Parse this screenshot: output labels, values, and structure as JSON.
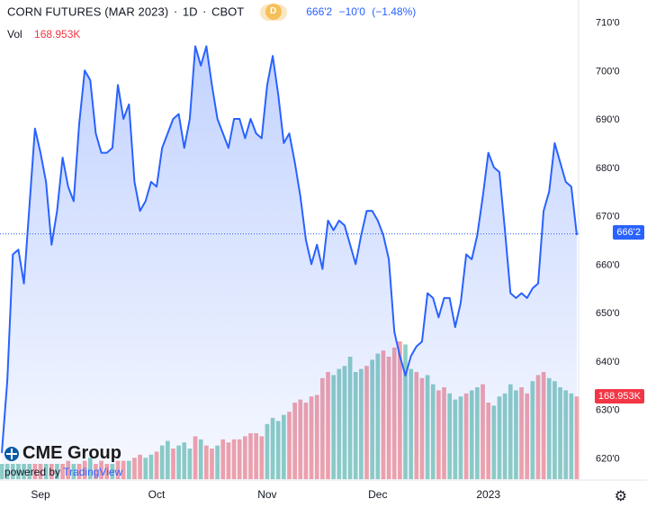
{
  "header": {
    "title": "CORN FUTURES (MAR 2023)",
    "interval": "1D",
    "exchange": "CBOT",
    "separator": "·",
    "badge_letter": "D",
    "last": "666'2",
    "change": "−10'0",
    "change_pct": "(−1.48%)"
  },
  "volume": {
    "label": "Vol",
    "value": "168.953K"
  },
  "price_tag": "666'2",
  "volume_tag": "168.953K",
  "logo": {
    "brand": "CME Group",
    "powered_by": "powered by",
    "tv": "TradingView"
  },
  "settings_icon": "gear-icon",
  "colors": {
    "line": "#2962ff",
    "vol_up": "#8fcfc4",
    "vol_down": "#f5a3a8",
    "price_tag": "#2962ff",
    "volume_tag": "#f23645"
  },
  "chart_data": {
    "type": "area",
    "ylim": [
      616,
      712
    ],
    "y_ticks": [
      "710'0",
      "700'0",
      "690'0",
      "680'0",
      "670'0",
      "660'0",
      "650'0",
      "640'0",
      "630'0",
      "620'0"
    ],
    "y_tick_values": [
      710,
      700,
      690,
      680,
      670,
      660,
      650,
      640,
      630,
      620
    ],
    "x_labels": [
      {
        "label": "Sep",
        "index": 7
      },
      {
        "label": "Oct",
        "index": 28
      },
      {
        "label": "Nov",
        "index": 48
      },
      {
        "label": "Dec",
        "index": 68
      },
      {
        "label": "2023",
        "index": 88
      }
    ],
    "last_price": 666.25,
    "close": [
      621,
      636,
      662,
      663,
      656,
      672,
      688,
      683,
      677,
      664,
      671,
      682,
      676,
      673,
      689,
      700,
      698,
      687,
      683,
      683,
      684,
      697,
      690,
      693,
      677,
      671,
      673,
      677,
      676,
      684,
      687,
      690,
      691,
      684,
      690,
      705,
      701,
      705,
      697,
      690,
      687,
      684,
      690,
      690,
      686,
      690,
      687,
      686,
      697,
      703,
      695,
      685,
      687,
      681,
      674,
      665,
      660,
      664,
      659,
      669,
      667,
      669,
      668,
      664,
      660,
      666,
      671,
      671,
      669,
      666,
      661,
      646,
      641,
      637,
      641,
      643,
      644,
      654,
      653,
      649,
      653,
      653,
      647,
      652,
      662,
      661,
      666,
      674,
      683,
      680,
      679,
      667,
      654,
      653,
      654,
      653,
      655,
      656,
      671,
      675,
      685,
      681,
      677,
      676,
      666
    ],
    "volume_colors": "uuuuuuddududdudduddduddudduuduuduuududdudddddddduuuudddddddduuuuuuduudddduudduudduuuduudduuuuuddudduuuuudd",
    "volume_heights": [
      0.1,
      0.1,
      0.1,
      0.1,
      0.1,
      0.1,
      0.1,
      0.1,
      0.1,
      0.1,
      0.1,
      0.1,
      0.12,
      0.1,
      0.1,
      0.12,
      0.14,
      0.1,
      0.12,
      0.1,
      0.1,
      0.12,
      0.12,
      0.12,
      0.14,
      0.16,
      0.14,
      0.16,
      0.18,
      0.22,
      0.25,
      0.2,
      0.22,
      0.24,
      0.2,
      0.28,
      0.26,
      0.22,
      0.2,
      0.22,
      0.26,
      0.24,
      0.26,
      0.26,
      0.28,
      0.3,
      0.3,
      0.28,
      0.36,
      0.4,
      0.38,
      0.42,
      0.44,
      0.5,
      0.52,
      0.5,
      0.54,
      0.55,
      0.66,
      0.7,
      0.68,
      0.72,
      0.74,
      0.8,
      0.7,
      0.72,
      0.74,
      0.78,
      0.82,
      0.84,
      0.8,
      0.86,
      0.9,
      0.88,
      0.72,
      0.7,
      0.66,
      0.68,
      0.62,
      0.58,
      0.6,
      0.56,
      0.52,
      0.54,
      0.56,
      0.58,
      0.6,
      0.62,
      0.5,
      0.48,
      0.54,
      0.56,
      0.62,
      0.58,
      0.6,
      0.56,
      0.64,
      0.68,
      0.7,
      0.66,
      0.64,
      0.6,
      0.58,
      0.56,
      0.54
    ]
  }
}
